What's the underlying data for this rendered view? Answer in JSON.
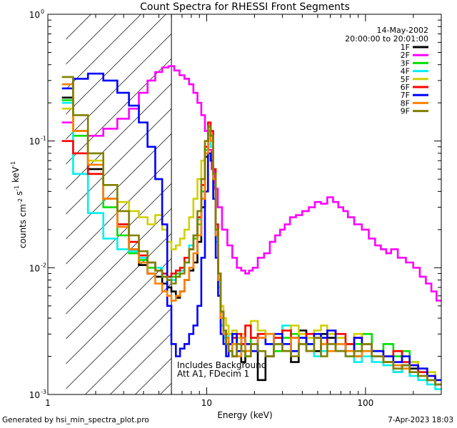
{
  "chart_data": {
    "type": "line",
    "title": "Count Spectra for RHESSI Front Segments",
    "xlabel": "Energy (keV)",
    "ylabel": "counts cm^-2 s^-1 keV^-1",
    "xscale": "log",
    "yscale": "log",
    "xlim": [
      1,
      300
    ],
    "ylim": [
      0.001,
      1
    ],
    "x_tick_labels": [
      "1",
      "10",
      "100"
    ],
    "y_tick_labels": [
      "10",
      "10",
      "10",
      "10"
    ],
    "y_tick_exponents": [
      "0",
      "-1",
      "-2",
      "-3"
    ],
    "legend_position": "top-right",
    "date": "14-May-2002",
    "time_range": "20:00:00 to 20:01:00",
    "annotations": [
      "Includes Background",
      "Att A1, FDecim 1"
    ],
    "hatched_region_x": [
      1.3,
      6
    ],
    "series": [
      {
        "name": "1F",
        "color": "#000000",
        "x": [
          1.3,
          1.6,
          2.0,
          2.5,
          3.0,
          3.5,
          4.0,
          4.5,
          5.0,
          5.5,
          5.8,
          6.2,
          6.6,
          7.0,
          7.5,
          8.0,
          8.5,
          9.0,
          9.5,
          10.0,
          10.4,
          10.8,
          11.2,
          11.6,
          12.0,
          12.5,
          13.0,
          13.5,
          14,
          15,
          16,
          17,
          18,
          20,
          22,
          25,
          28,
          32,
          36,
          40,
          45,
          50,
          55,
          60,
          70,
          80,
          90,
          100,
          120,
          140,
          160,
          180,
          200,
          230,
          260,
          290
        ],
        "y": [
          0.22,
          0.12,
          0.06,
          0.035,
          0.022,
          0.014,
          0.0105,
          0.009,
          0.0085,
          0.0075,
          0.007,
          0.0065,
          0.0058,
          0.0065,
          0.008,
          0.0095,
          0.011,
          0.016,
          0.03,
          0.075,
          0.13,
          0.11,
          0.055,
          0.02,
          0.009,
          0.0045,
          0.003,
          0.0025,
          0.0022,
          0.002,
          0.0028,
          0.0018,
          0.0022,
          0.0025,
          0.0013,
          0.002,
          0.0025,
          0.0022,
          0.0018,
          0.0032,
          0.0025,
          0.0022,
          0.003,
          0.0028,
          0.0022,
          0.0025,
          0.002,
          0.0022,
          0.002,
          0.0018,
          0.0015,
          0.0017,
          0.0016,
          0.0015,
          0.0013,
          0.0012
        ]
      },
      {
        "name": "2F",
        "color": "#ff00ff",
        "x": [
          1.3,
          1.6,
          2.0,
          2.5,
          3.0,
          3.5,
          4.0,
          4.5,
          5.0,
          5.5,
          6.0,
          6.5,
          7.0,
          7.5,
          8.0,
          8.5,
          9.0,
          9.5,
          10,
          10.5,
          11,
          11.5,
          12,
          13,
          14,
          15,
          16,
          17,
          18,
          19,
          20,
          22,
          24,
          26,
          28,
          30,
          32,
          35,
          38,
          42,
          46,
          50,
          55,
          60,
          65,
          70,
          75,
          80,
          90,
          100,
          110,
          120,
          130,
          140,
          150,
          170,
          190,
          210,
          230,
          250,
          270,
          290
        ],
        "y": [
          0.14,
          0.12,
          0.11,
          0.125,
          0.15,
          0.18,
          0.24,
          0.3,
          0.35,
          0.38,
          0.39,
          0.36,
          0.33,
          0.31,
          0.28,
          0.24,
          0.2,
          0.16,
          0.12,
          0.085,
          0.06,
          0.042,
          0.03,
          0.02,
          0.015,
          0.012,
          0.01,
          0.0095,
          0.009,
          0.0095,
          0.01,
          0.012,
          0.013,
          0.016,
          0.018,
          0.02,
          0.022,
          0.025,
          0.026,
          0.028,
          0.03,
          0.033,
          0.032,
          0.036,
          0.033,
          0.03,
          0.028,
          0.025,
          0.022,
          0.02,
          0.017,
          0.015,
          0.014,
          0.013,
          0.014,
          0.012,
          0.011,
          0.01,
          0.0085,
          0.0075,
          0.0065,
          0.0055
        ]
      },
      {
        "name": "3F",
        "color": "#00e000",
        "x": [
          1.3,
          1.6,
          2.0,
          2.5,
          3.0,
          3.5,
          4.0,
          4.5,
          5.0,
          5.5,
          5.8,
          6.2,
          6.6,
          7.0,
          7.5,
          8.0,
          8.5,
          9.0,
          9.5,
          10.0,
          10.4,
          10.8,
          11.2,
          11.6,
          12.0,
          12.5,
          13.0,
          13.5,
          14,
          15,
          16,
          17,
          18,
          20,
          22,
          25,
          28,
          32,
          36,
          40,
          45,
          50,
          55,
          60,
          70,
          80,
          90,
          100,
          120,
          140,
          160,
          180,
          200,
          230,
          260,
          290
        ],
        "y": [
          0.21,
          0.11,
          0.055,
          0.03,
          0.018,
          0.013,
          0.0115,
          0.01,
          0.0095,
          0.0085,
          0.008,
          0.0085,
          0.009,
          0.0095,
          0.011,
          0.014,
          0.017,
          0.022,
          0.04,
          0.085,
          0.12,
          0.1,
          0.05,
          0.018,
          0.008,
          0.004,
          0.0028,
          0.003,
          0.0025,
          0.0028,
          0.0022,
          0.0025,
          0.002,
          0.0028,
          0.003,
          0.0025,
          0.0022,
          0.0028,
          0.003,
          0.0025,
          0.0022,
          0.0028,
          0.0025,
          0.003,
          0.0028,
          0.0025,
          0.0025,
          0.003,
          0.0022,
          0.0025,
          0.002,
          0.0022,
          0.0018,
          0.0016,
          0.0014,
          0.0013
        ]
      },
      {
        "name": "4F",
        "color": "#00f0f0",
        "x": [
          1.3,
          1.6,
          2.0,
          2.5,
          3.0,
          3.5,
          4.0,
          4.5,
          5.0,
          5.5,
          5.8,
          6.2,
          6.6,
          7.0,
          7.5,
          8.0,
          8.5,
          9.0,
          9.5,
          10.0,
          10.4,
          10.8,
          11.2,
          11.6,
          12.0,
          12.5,
          13.0,
          13.5,
          14,
          15,
          16,
          17,
          18,
          20,
          22,
          25,
          28,
          32,
          36,
          40,
          45,
          50,
          55,
          60,
          70,
          80,
          90,
          100,
          120,
          140,
          160,
          180,
          200,
          230,
          260,
          290
        ],
        "y": [
          0.2,
          0.055,
          0.027,
          0.017,
          0.014,
          0.0135,
          0.012,
          0.011,
          0.01,
          0.009,
          0.0085,
          0.008,
          0.0085,
          0.0095,
          0.012,
          0.015,
          0.018,
          0.024,
          0.045,
          0.09,
          0.11,
          0.09,
          0.045,
          0.016,
          0.007,
          0.0035,
          0.0028,
          0.0025,
          0.003,
          0.0028,
          0.0025,
          0.0022,
          0.0025,
          0.0022,
          0.003,
          0.0025,
          0.003,
          0.0035,
          0.0022,
          0.0028,
          0.0025,
          0.002,
          0.0022,
          0.0025,
          0.0022,
          0.002,
          0.0018,
          0.002,
          0.0018,
          0.0017,
          0.0015,
          0.0016,
          0.0014,
          0.0013,
          0.0012,
          0.0011
        ]
      },
      {
        "name": "5F",
        "color": "#d0d000",
        "x": [
          1.3,
          1.6,
          2.0,
          2.5,
          3.0,
          3.5,
          4.0,
          4.5,
          5.0,
          5.5,
          5.8,
          6.2,
          6.6,
          7.0,
          7.5,
          8.0,
          8.5,
          9.0,
          9.5,
          10.0,
          10.4,
          10.8,
          11.2,
          11.6,
          12.0,
          12.5,
          13.0,
          13.5,
          14,
          15,
          16,
          17,
          18,
          20,
          22,
          25,
          28,
          32,
          36,
          40,
          45,
          50,
          55,
          60,
          70,
          80,
          90,
          100,
          120,
          140,
          160,
          180,
          200,
          230,
          260,
          290
        ],
        "y": [
          0.18,
          0.12,
          0.07,
          0.045,
          0.033,
          0.028,
          0.025,
          0.022,
          0.026,
          0.02,
          0.016,
          0.014,
          0.015,
          0.017,
          0.02,
          0.025,
          0.035,
          0.05,
          0.07,
          0.1,
          0.12,
          0.1,
          0.05,
          0.02,
          0.009,
          0.005,
          0.004,
          0.0035,
          0.003,
          0.0032,
          0.0028,
          0.003,
          0.0035,
          0.0038,
          0.0032,
          0.003,
          0.0028,
          0.0032,
          0.0035,
          0.003,
          0.0028,
          0.0032,
          0.0035,
          0.003,
          0.0028,
          0.0025,
          0.003,
          0.0025,
          0.0022,
          0.002,
          0.0022,
          0.002,
          0.0018,
          0.0016,
          0.0015,
          0.0013
        ]
      },
      {
        "name": "6F",
        "color": "#ff0000",
        "x": [
          1.3,
          1.6,
          2.0,
          2.5,
          3.0,
          3.5,
          4.0,
          4.5,
          5.0,
          5.5,
          5.8,
          6.2,
          6.6,
          7.0,
          7.5,
          8.0,
          8.5,
          9.0,
          9.5,
          10.0,
          10.4,
          10.8,
          11.2,
          11.6,
          12.0,
          12.5,
          13.0,
          13.5,
          14,
          15,
          16,
          17,
          18,
          20,
          22,
          25,
          28,
          32,
          36,
          40,
          45,
          50,
          55,
          60,
          70,
          80,
          90,
          100,
          120,
          140,
          160,
          180,
          200,
          230,
          260,
          290
        ],
        "y": [
          0.1,
          0.08,
          0.055,
          0.035,
          0.022,
          0.016,
          0.0125,
          0.011,
          0.0095,
          0.009,
          0.0085,
          0.009,
          0.0095,
          0.01,
          0.012,
          0.014,
          0.018,
          0.025,
          0.045,
          0.09,
          0.14,
          0.12,
          0.06,
          0.022,
          0.009,
          0.0045,
          0.0032,
          0.0028,
          0.0025,
          0.0028,
          0.003,
          0.0025,
          0.0035,
          0.0028,
          0.003,
          0.0025,
          0.0028,
          0.0032,
          0.0028,
          0.0025,
          0.003,
          0.0028,
          0.0025,
          0.0032,
          0.003,
          0.0025,
          0.0028,
          0.0025,
          0.0022,
          0.002,
          0.0022,
          0.0018,
          0.0017,
          0.0015,
          0.0014,
          0.0013
        ]
      },
      {
        "name": "7F",
        "color": "#0000ff",
        "x": [
          1.3,
          1.6,
          2.0,
          2.5,
          3.0,
          3.5,
          4.0,
          4.5,
          5.0,
          5.5,
          5.8,
          6.2,
          6.6,
          7.0,
          7.5,
          8.0,
          8.5,
          9.0,
          9.5,
          10.0,
          10.4,
          10.8,
          11.2,
          11.6,
          12.0,
          12.5,
          13.0,
          13.5,
          14,
          15,
          16,
          17,
          18,
          20,
          22,
          25,
          28,
          32,
          36,
          40,
          45,
          50,
          55,
          60,
          70,
          80,
          90,
          100,
          120,
          140,
          160,
          180,
          200,
          230,
          260,
          290
        ],
        "y": [
          0.26,
          0.31,
          0.34,
          0.3,
          0.24,
          0.19,
          0.14,
          0.09,
          0.05,
          0.022,
          0.005,
          0.0025,
          0.002,
          0.0023,
          0.0025,
          0.003,
          0.0035,
          0.005,
          0.012,
          0.04,
          0.08,
          0.07,
          0.035,
          0.012,
          0.006,
          0.003,
          0.0025,
          0.002,
          0.0025,
          0.003,
          0.0022,
          0.0028,
          0.0025,
          0.0022,
          0.0028,
          0.0025,
          0.003,
          0.0025,
          0.0022,
          0.0028,
          0.0025,
          0.003,
          0.0028,
          0.0032,
          0.0025,
          0.0022,
          0.0028,
          0.0025,
          0.0022,
          0.002,
          0.0018,
          0.002,
          0.0017,
          0.0016,
          0.0014,
          0.0013
        ]
      },
      {
        "name": "8F",
        "color": "#ff8000",
        "x": [
          1.3,
          1.6,
          2.0,
          2.5,
          3.0,
          3.5,
          4.0,
          4.5,
          5.0,
          5.5,
          5.8,
          6.2,
          6.6,
          7.0,
          7.5,
          8.0,
          8.5,
          9.0,
          9.5,
          10.0,
          10.4,
          10.8,
          11.2,
          11.6,
          12.0,
          12.5,
          13.0,
          13.5,
          14,
          15,
          16,
          17,
          18,
          20,
          22,
          25,
          28,
          32,
          36,
          40,
          45,
          50,
          55,
          60,
          70,
          80,
          90,
          100,
          120,
          140,
          160,
          180,
          200,
          230,
          260,
          290
        ],
        "y": [
          0.28,
          0.12,
          0.065,
          0.035,
          0.021,
          0.014,
          0.011,
          0.009,
          0.0075,
          0.0065,
          0.006,
          0.0055,
          0.006,
          0.0065,
          0.008,
          0.01,
          0.013,
          0.018,
          0.035,
          0.08,
          0.12,
          0.1,
          0.05,
          0.018,
          0.008,
          0.004,
          0.003,
          0.0028,
          0.0022,
          0.0025,
          0.002,
          0.0028,
          0.0022,
          0.0025,
          0.0028,
          0.003,
          0.0025,
          0.0022,
          0.0028,
          0.0025,
          0.0022,
          0.0028,
          0.0025,
          0.0022,
          0.0025,
          0.0022,
          0.002,
          0.0022,
          0.002,
          0.0018,
          0.0017,
          0.0016,
          0.0015,
          0.0014,
          0.0013,
          0.0012
        ]
      },
      {
        "name": "9F",
        "color": "#808000",
        "x": [
          1.3,
          1.6,
          2.0,
          2.5,
          3.0,
          3.5,
          4.0,
          4.5,
          5.0,
          5.5,
          5.8,
          6.2,
          6.6,
          7.0,
          7.5,
          8.0,
          8.5,
          9.0,
          9.5,
          10.0,
          10.4,
          10.8,
          11.2,
          11.6,
          12.0,
          12.5,
          13.0,
          13.5,
          14,
          15,
          16,
          17,
          18,
          20,
          22,
          25,
          28,
          32,
          36,
          40,
          45,
          50,
          55,
          60,
          70,
          80,
          90,
          100,
          120,
          140,
          160,
          180,
          200,
          230,
          260,
          290
        ],
        "y": [
          0.32,
          0.16,
          0.08,
          0.045,
          0.028,
          0.018,
          0.0135,
          0.011,
          0.0095,
          0.0085,
          0.008,
          0.0075,
          0.0085,
          0.009,
          0.011,
          0.014,
          0.018,
          0.028,
          0.05,
          0.1,
          0.13,
          0.11,
          0.055,
          0.02,
          0.009,
          0.0045,
          0.0032,
          0.0025,
          0.0022,
          0.002,
          0.0025,
          0.0022,
          0.002,
          0.0025,
          0.0022,
          0.002,
          0.0025,
          0.0022,
          0.002,
          0.0025,
          0.0022,
          0.0028,
          0.002,
          0.0025,
          0.0022,
          0.002,
          0.0022,
          0.0025,
          0.002,
          0.0018,
          0.0016,
          0.0017,
          0.0015,
          0.0014,
          0.0013,
          0.0012
        ]
      }
    ]
  },
  "footer": {
    "generated_by": "Generated by hsi_min_spectra_plot.pro",
    "timestamp": "7-Apr-2023 18:03"
  }
}
